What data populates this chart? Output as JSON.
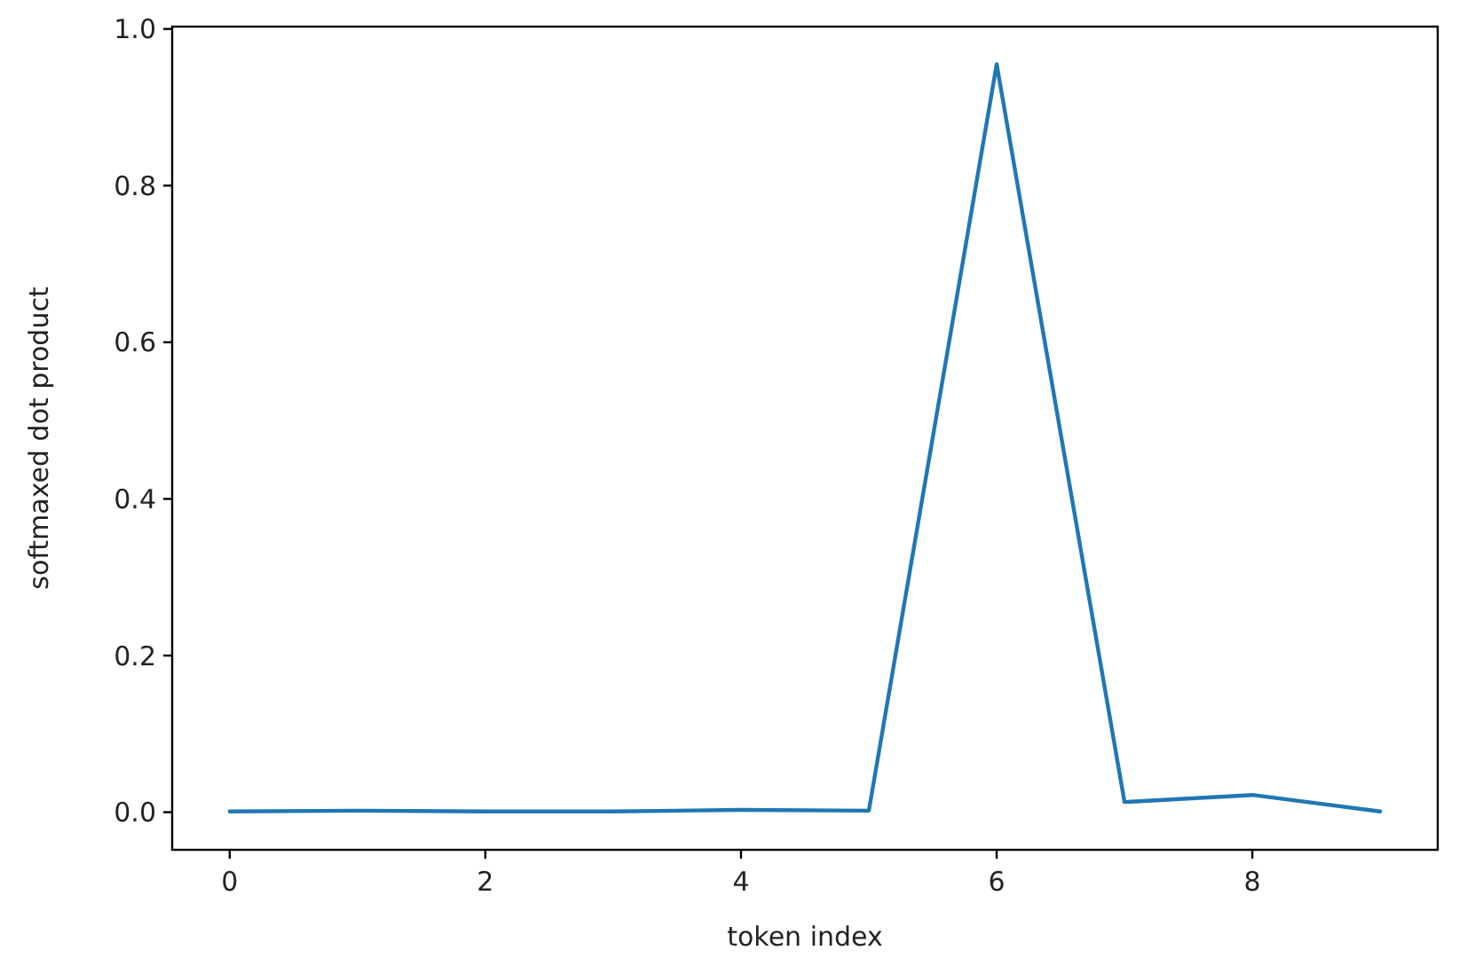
{
  "chart_data": {
    "type": "line",
    "xlabel": "token index",
    "ylabel": "softmaxed dot product",
    "x": [
      0,
      1,
      2,
      3,
      4,
      5,
      6,
      7,
      8,
      9
    ],
    "series": [
      {
        "color": "#1f77b4",
        "values": [
          0.001,
          0.002,
          0.001,
          0.001,
          0.003,
          0.002,
          0.955,
          0.013,
          0.022,
          0.001
        ]
      }
    ],
    "xlim": [
      -0.45,
      9.45
    ],
    "ylim": [
      -0.048,
      1.003
    ],
    "xticks": [
      0,
      2,
      4,
      6,
      8
    ],
    "yticks": [
      {
        "value": 0,
        "label": "0.0"
      },
      0.2,
      0.4,
      0.6,
      0.8,
      {
        "value": 1,
        "label": "1.0"
      }
    ]
  }
}
